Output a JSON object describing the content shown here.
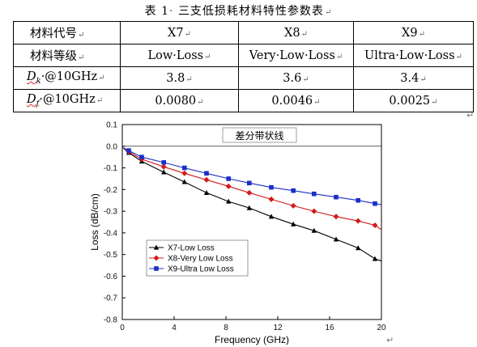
{
  "document": {
    "caption": {
      "label": "表 1",
      "separator": "·",
      "title": "三支低损耗材料特性参数表",
      "mark": "↵"
    },
    "paragraph_mark": "↵",
    "table": {
      "header": {
        "label": "材料代号",
        "values": [
          "X7",
          "X8",
          "X9"
        ]
      },
      "grade": {
        "label": "材料等级",
        "values": [
          "Low·Loss",
          "Very·Low·Loss",
          "Ultra·Low·Loss"
        ]
      },
      "dk": {
        "symbol": "D",
        "subscript": "k",
        "suffix": "·@10GHz",
        "values": [
          "3.8",
          "3.6",
          "3.4"
        ]
      },
      "df": {
        "symbol": "D",
        "subscript": "f",
        "suffix": "·@10GHz",
        "values": [
          "0.0080",
          "0.0046",
          "0.0025"
        ]
      }
    }
  },
  "chart_data": {
    "type": "line",
    "title": "差分带状线",
    "xlabel": "Frequency (GHz)",
    "ylabel": "Loss (dB/cm)",
    "xlim": [
      0,
      20
    ],
    "ylim": [
      -0.8,
      0.1
    ],
    "xticks": [
      0,
      4,
      8,
      12,
      16,
      20
    ],
    "yticks": [
      0.1,
      0.0,
      -0.1,
      -0.2,
      -0.3,
      -0.4,
      -0.5,
      -0.6,
      -0.7,
      -0.8
    ],
    "legend_position": "lower-left",
    "grid": false,
    "series": [
      {
        "name": "X7-Low Loss",
        "color": "#000000",
        "marker": "triangle",
        "x": [
          0,
          0.5,
          1.5,
          3.2,
          4.8,
          6.5,
          8.2,
          9.8,
          11.5,
          13.2,
          14.8,
          16.5,
          18.2,
          19.5,
          20.0
        ],
        "y": [
          -0.005,
          -0.03,
          -0.07,
          -0.12,
          -0.165,
          -0.215,
          -0.255,
          -0.285,
          -0.325,
          -0.36,
          -0.39,
          -0.43,
          -0.47,
          -0.52,
          -0.53
        ]
      },
      {
        "name": "X8-Very Low Loss",
        "color": "#d21a1a",
        "marker": "diamond",
        "x": [
          0,
          0.5,
          1.5,
          3.2,
          4.8,
          6.5,
          8.2,
          9.8,
          11.5,
          13.2,
          14.8,
          16.5,
          18.2,
          19.5,
          20.0
        ],
        "y": [
          -0.005,
          -0.025,
          -0.06,
          -0.095,
          -0.125,
          -0.155,
          -0.185,
          -0.215,
          -0.245,
          -0.275,
          -0.3,
          -0.325,
          -0.345,
          -0.365,
          -0.385
        ]
      },
      {
        "name": "X9-Ultra Low Loss",
        "color": "#1a2fc8",
        "marker": "square",
        "x": [
          0,
          0.5,
          1.5,
          3.2,
          4.8,
          6.5,
          8.2,
          9.8,
          11.5,
          13.2,
          14.8,
          16.5,
          18.2,
          19.5,
          20.0
        ],
        "y": [
          -0.005,
          -0.02,
          -0.05,
          -0.075,
          -0.1,
          -0.125,
          -0.15,
          -0.17,
          -0.19,
          -0.205,
          -0.22,
          -0.235,
          -0.25,
          -0.265,
          -0.27
        ]
      }
    ]
  }
}
